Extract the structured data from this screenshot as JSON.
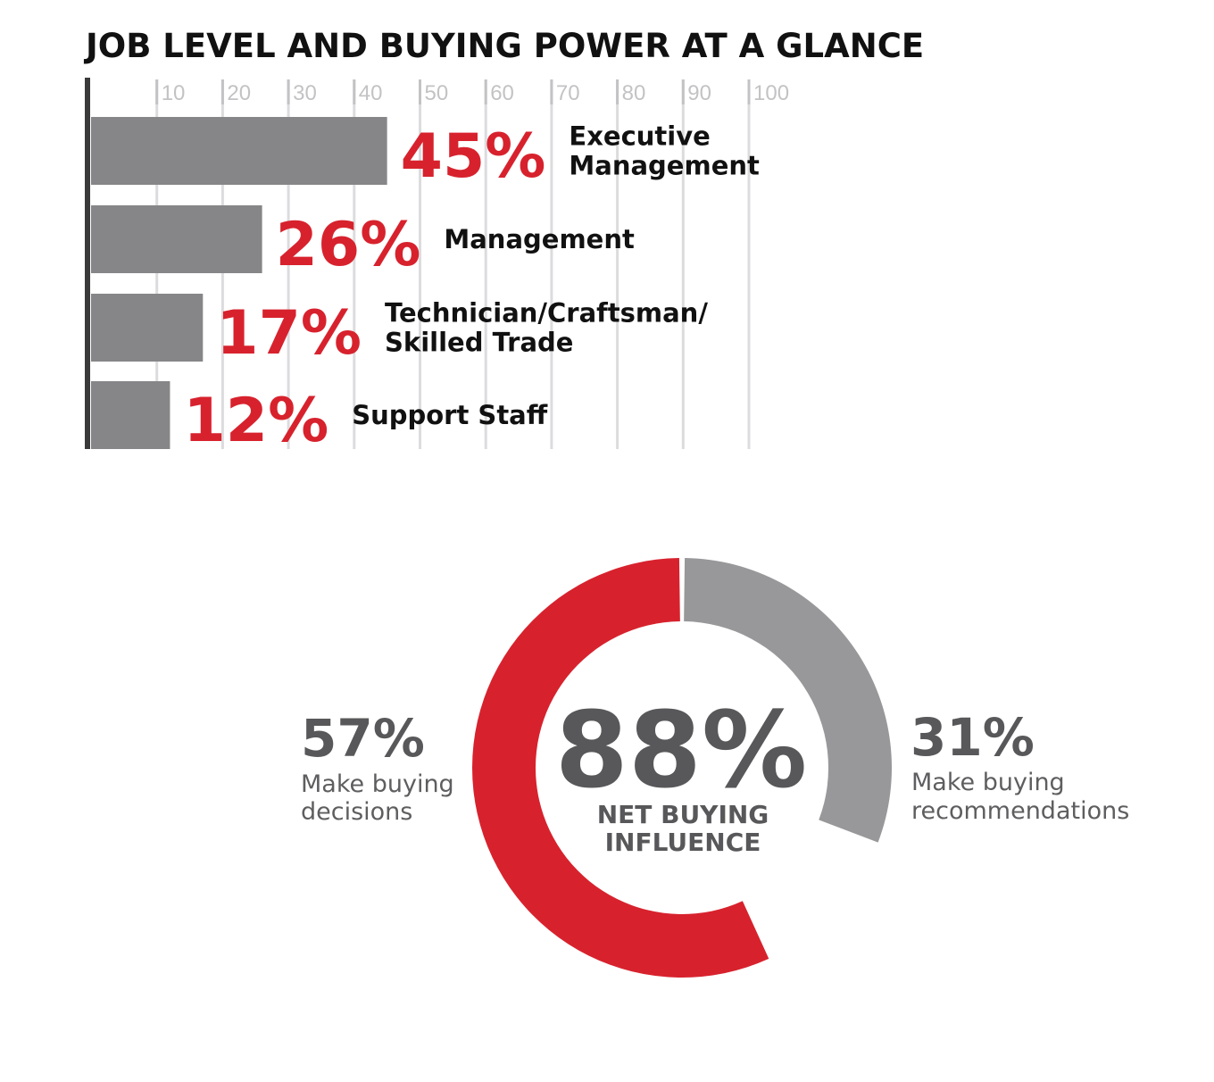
{
  "title": "JOB LEVEL AND BUYING POWER AT A GLANCE",
  "colors": {
    "bar": "#868688",
    "accent_red": "#d7222d",
    "gray_segment": "#98989a",
    "text_dark": "#58585a",
    "gridline": "#dcdcde",
    "axis": "#3a3a3a"
  },
  "chart_data": [
    {
      "type": "bar",
      "orientation": "horizontal",
      "title": "JOB LEVEL AND BUYING POWER AT A GLANCE",
      "xlim": [
        0,
        100
      ],
      "tick_values": [
        10,
        20,
        30,
        40,
        50,
        60,
        70,
        80,
        90,
        100
      ],
      "tick_labels": [
        "10",
        "20",
        "30",
        "40",
        "50",
        "60",
        "70",
        "80",
        "90",
        "100"
      ],
      "grid": true,
      "categories": [
        [
          "Executive",
          "Management"
        ],
        [
          "Management"
        ],
        [
          "Technician/Craftsman/",
          "Skilled Trade"
        ],
        [
          "Support Staff"
        ]
      ],
      "values": [
        45,
        26,
        17,
        12
      ],
      "value_labels": [
        "45%",
        "26%",
        "17%",
        "12%"
      ]
    },
    {
      "type": "pie",
      "style": "donut",
      "center_value": "88%",
      "center_label": [
        "NET BUYING",
        "INFLUENCE"
      ],
      "segments": [
        {
          "value": 57,
          "label": "57%",
          "description": [
            "Make buying",
            "decisions"
          ],
          "color": "#d7222d"
        },
        {
          "value": 31,
          "label": "31%",
          "description": [
            "Make buying",
            "recommendations"
          ],
          "color": "#98989a"
        }
      ]
    }
  ]
}
